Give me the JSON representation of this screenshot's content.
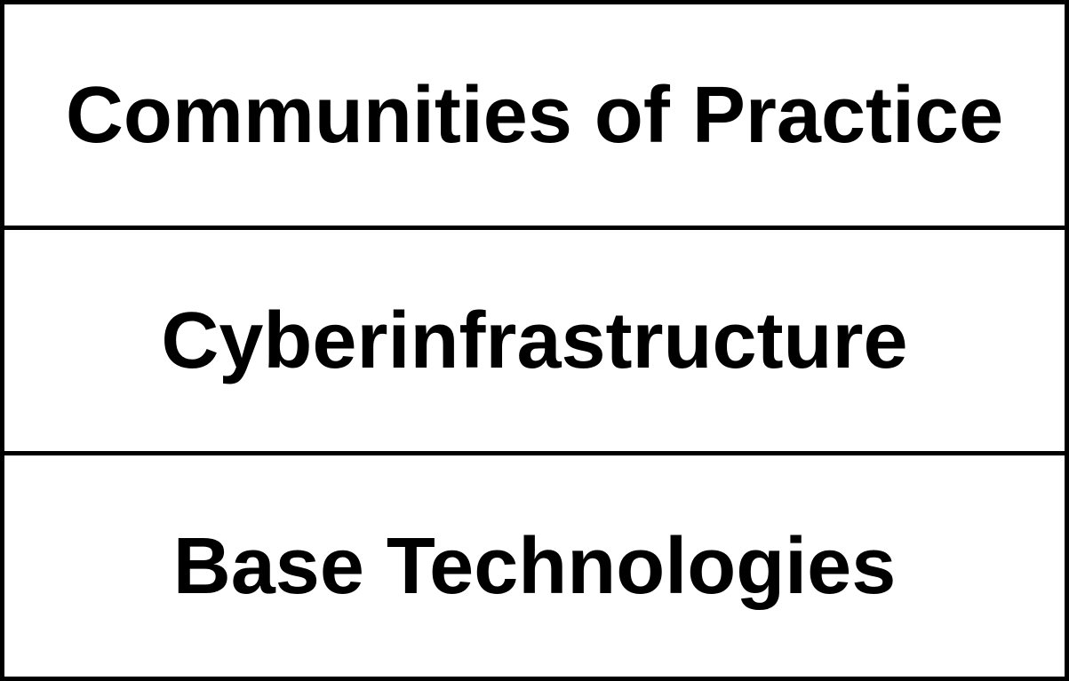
{
  "layers": [
    {
      "label": "Communities of Practice"
    },
    {
      "label": "Cyberinfrastructure"
    },
    {
      "label": "Base Technologies"
    }
  ]
}
